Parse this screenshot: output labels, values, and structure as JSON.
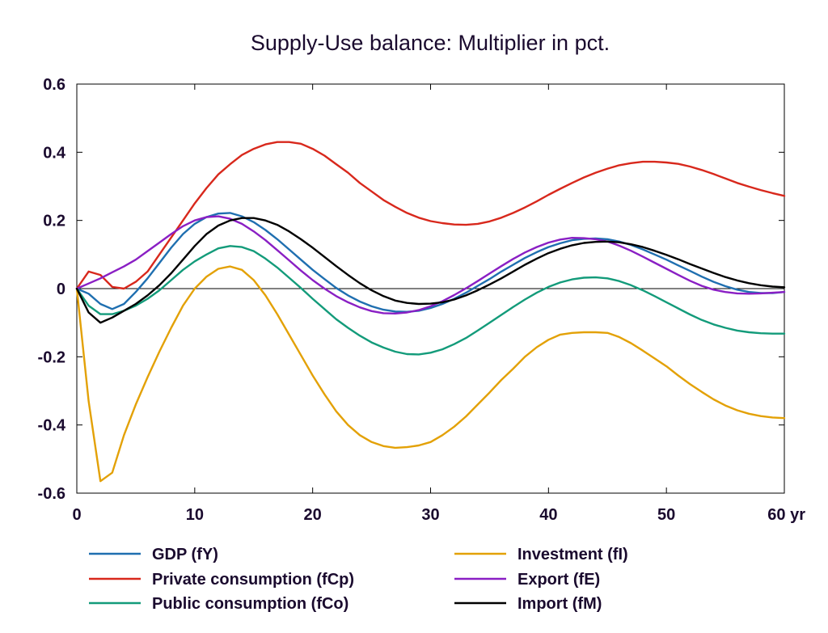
{
  "chart_data": {
    "type": "line",
    "title": "Supply-Use balance: Multiplier in pct.",
    "xlabel": "",
    "ylabel": "",
    "xlim": [
      0,
      60
    ],
    "ylim": [
      -0.6,
      0.6
    ],
    "x_ticks": [
      "0",
      "10",
      "20",
      "30",
      "40",
      "50",
      "60 yr"
    ],
    "y_ticks": [
      "0.6",
      "0.4",
      "0.2",
      "0",
      "-0.2",
      "-0.4",
      "-0.6"
    ],
    "grid": false,
    "legend_position": "bottom",
    "x": [
      0,
      1,
      2,
      3,
      4,
      5,
      6,
      7,
      8,
      9,
      10,
      11,
      12,
      13,
      14,
      15,
      16,
      17,
      18,
      19,
      20,
      21,
      22,
      23,
      24,
      25,
      26,
      27,
      28,
      29,
      30,
      31,
      32,
      33,
      34,
      35,
      36,
      37,
      38,
      39,
      40,
      41,
      42,
      43,
      44,
      45,
      46,
      47,
      48,
      49,
      50,
      51,
      52,
      53,
      54,
      55,
      56,
      57,
      58,
      59,
      60
    ],
    "series": [
      {
        "name": "GDP (fY)",
        "color": "#1f6fb0",
        "values": [
          0,
          -0.015,
          -0.045,
          -0.06,
          -0.045,
          -0.01,
          0.03,
          0.075,
          0.12,
          0.16,
          0.19,
          0.21,
          0.22,
          0.222,
          0.212,
          0.195,
          0.172,
          0.145,
          0.115,
          0.085,
          0.055,
          0.028,
          0.002,
          -0.02,
          -0.038,
          -0.052,
          -0.062,
          -0.067,
          -0.068,
          -0.065,
          -0.057,
          -0.045,
          -0.03,
          -0.012,
          0.008,
          0.028,
          0.05,
          0.07,
          0.09,
          0.107,
          0.122,
          0.133,
          0.142,
          0.146,
          0.147,
          0.145,
          0.138,
          0.128,
          0.115,
          0.1,
          0.085,
          0.068,
          0.052,
          0.035,
          0.02,
          0.007,
          -0.003,
          -0.01,
          -0.013,
          -0.013,
          -0.01
        ]
      },
      {
        "name": "Private consumption (fCp)",
        "color": "#d8281c",
        "values": [
          0,
          0.05,
          0.04,
          0.005,
          0,
          0.02,
          0.05,
          0.1,
          0.15,
          0.2,
          0.25,
          0.295,
          0.335,
          0.365,
          0.392,
          0.41,
          0.423,
          0.43,
          0.43,
          0.425,
          0.41,
          0.39,
          0.365,
          0.34,
          0.31,
          0.285,
          0.26,
          0.24,
          0.222,
          0.208,
          0.198,
          0.192,
          0.188,
          0.187,
          0.19,
          0.197,
          0.208,
          0.222,
          0.238,
          0.256,
          0.275,
          0.293,
          0.31,
          0.326,
          0.34,
          0.352,
          0.362,
          0.368,
          0.372,
          0.372,
          0.37,
          0.366,
          0.358,
          0.348,
          0.336,
          0.323,
          0.31,
          0.299,
          0.289,
          0.28,
          0.272
        ]
      },
      {
        "name": "Public consumption (fCo)",
        "color": "#139b7a",
        "values": [
          0,
          -0.05,
          -0.075,
          -0.075,
          -0.065,
          -0.05,
          -0.03,
          -0.005,
          0.025,
          0.055,
          0.08,
          0.1,
          0.118,
          0.125,
          0.122,
          0.11,
          0.088,
          0.062,
          0.032,
          0.002,
          -0.03,
          -0.06,
          -0.09,
          -0.115,
          -0.138,
          -0.158,
          -0.173,
          -0.185,
          -0.192,
          -0.193,
          -0.188,
          -0.178,
          -0.163,
          -0.145,
          -0.123,
          -0.1,
          -0.077,
          -0.054,
          -0.032,
          -0.012,
          0.005,
          0.018,
          0.027,
          0.032,
          0.033,
          0.03,
          0.022,
          0.01,
          -0.005,
          -0.022,
          -0.04,
          -0.058,
          -0.076,
          -0.092,
          -0.105,
          -0.115,
          -0.123,
          -0.128,
          -0.131,
          -0.132,
          -0.132
        ]
      },
      {
        "name": "Investment (fI)",
        "color": "#e3a106",
        "values": [
          0,
          -0.33,
          -0.565,
          -0.54,
          -0.43,
          -0.34,
          -0.26,
          -0.185,
          -0.115,
          -0.05,
          0,
          0.035,
          0.058,
          0.065,
          0.055,
          0.025,
          -0.02,
          -0.075,
          -0.135,
          -0.195,
          -0.255,
          -0.31,
          -0.36,
          -0.4,
          -0.43,
          -0.45,
          -0.462,
          -0.467,
          -0.465,
          -0.46,
          -0.45,
          -0.43,
          -0.405,
          -0.375,
          -0.34,
          -0.305,
          -0.268,
          -0.235,
          -0.2,
          -0.172,
          -0.15,
          -0.135,
          -0.13,
          -0.128,
          -0.128,
          -0.13,
          -0.142,
          -0.16,
          -0.182,
          -0.205,
          -0.228,
          -0.255,
          -0.28,
          -0.303,
          -0.325,
          -0.343,
          -0.357,
          -0.367,
          -0.374,
          -0.378,
          -0.38
        ]
      },
      {
        "name": "Export (fE)",
        "color": "#8a1fc4",
        "values": [
          0,
          0.015,
          0.03,
          0.048,
          0.065,
          0.085,
          0.11,
          0.135,
          0.16,
          0.183,
          0.2,
          0.21,
          0.212,
          0.205,
          0.19,
          0.168,
          0.142,
          0.113,
          0.083,
          0.053,
          0.025,
          0,
          -0.022,
          -0.04,
          -0.055,
          -0.066,
          -0.072,
          -0.073,
          -0.07,
          -0.063,
          -0.052,
          -0.037,
          -0.019,
          0.001,
          0.022,
          0.044,
          0.066,
          0.087,
          0.106,
          0.122,
          0.135,
          0.144,
          0.149,
          0.148,
          0.145,
          0.138,
          0.126,
          0.111,
          0.094,
          0.076,
          0.058,
          0.04,
          0.023,
          0.008,
          -0.003,
          -0.01,
          -0.014,
          -0.015,
          -0.014,
          -0.012,
          -0.01
        ]
      },
      {
        "name": "Import (fM)",
        "color": "#000000",
        "values": [
          0,
          -0.07,
          -0.1,
          -0.085,
          -0.065,
          -0.045,
          -0.02,
          0.01,
          0.045,
          0.085,
          0.125,
          0.16,
          0.185,
          0.2,
          0.207,
          0.207,
          0.2,
          0.187,
          0.168,
          0.145,
          0.12,
          0.093,
          0.066,
          0.04,
          0.016,
          -0.005,
          -0.022,
          -0.035,
          -0.042,
          -0.045,
          -0.044,
          -0.04,
          -0.032,
          -0.02,
          -0.005,
          0.012,
          0.03,
          0.05,
          0.07,
          0.088,
          0.104,
          0.117,
          0.127,
          0.134,
          0.137,
          0.138,
          0.136,
          0.13,
          0.122,
          0.111,
          0.099,
          0.086,
          0.072,
          0.059,
          0.046,
          0.034,
          0.024,
          0.016,
          0.01,
          0.006,
          0.004
        ]
      }
    ]
  }
}
